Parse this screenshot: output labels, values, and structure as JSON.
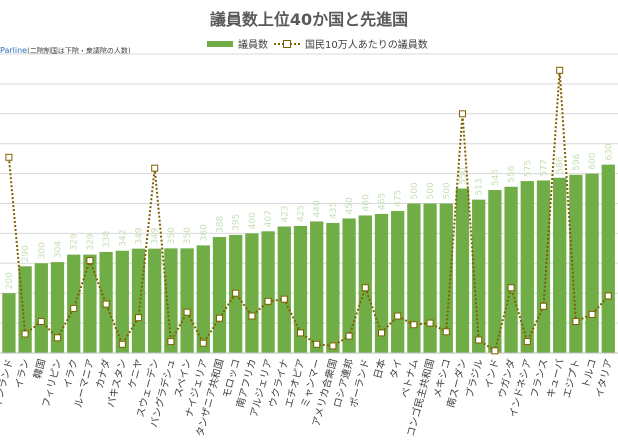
{
  "title": "議員数上位40か国と先進国",
  "note": {
    "source": "Parline",
    "text": "(二院制国は下院・衆議院の人数)"
  },
  "legend": {
    "bar_label": "議員数",
    "line_label": "国民10万人あたりの議員数"
  },
  "colors": {
    "bar": "#70ad47",
    "line": "#7f6000",
    "grid": "#d9d9d9",
    "value_label": "#c6e0b4"
  },
  "chart_data": {
    "type": "bar",
    "title": "議員数上位40か国と先進国",
    "categories": [
      "フィンランド",
      "イラン",
      "韓国",
      "フィリピン",
      "イラク",
      "ルーマニア",
      "カナダ",
      "パキスタン",
      "ケニヤ",
      "スウェーデン",
      "バングラデシュ",
      "スペイン",
      "ナイジェリア",
      "タンザニア共和国",
      "モロッコ",
      "南アフリカ",
      "アルジェリア",
      "ウクライナ",
      "エチオピア",
      "ミャンマー",
      "アメリカ合衆国",
      "ロシア連邦",
      "ポーランド",
      "日本",
      "タイ",
      "ベトナム",
      "コンゴ民主共和国",
      "メキシコ",
      "南スーダン",
      "ブラジル",
      "インド",
      "ウガンダ",
      "インドネシア",
      "フランス",
      "キューバ",
      "エジプト",
      "トルコ",
      "イタリア"
    ],
    "series": [
      {
        "name": "議員数",
        "type": "bar",
        "values": [
          200,
          290,
          300,
          304,
          329,
          329,
          338,
          342,
          349,
          349,
          350,
          350,
          360,
          388,
          395,
          400,
          407,
          423,
          425,
          440,
          435,
          450,
          460,
          465,
          475,
          500,
          500,
          500,
          550,
          513,
          545,
          556,
          575,
          577,
          586,
          596,
          600,
          630
        ]
      },
      {
        "name": "国民10万人あたりの議員数",
        "type": "line",
        "values": [
          3.6,
          0.35,
          0.58,
          0.28,
          0.82,
          1.7,
          0.9,
          0.16,
          0.65,
          3.4,
          0.21,
          0.75,
          0.18,
          0.64,
          1.1,
          0.68,
          0.95,
          0.99,
          0.37,
          0.16,
          0.13,
          0.31,
          1.2,
          0.37,
          0.68,
          0.52,
          0.55,
          0.39,
          4.4,
          0.24,
          0.04,
          1.2,
          0.21,
          0.86,
          5.2,
          0.58,
          0.71,
          1.05
        ]
      }
    ],
    "ylim": [
      0,
      1000
    ],
    "y2lim": [
      0,
      5.5
    ],
    "grid": true,
    "legend_position": "top",
    "show_value_labels": true
  }
}
